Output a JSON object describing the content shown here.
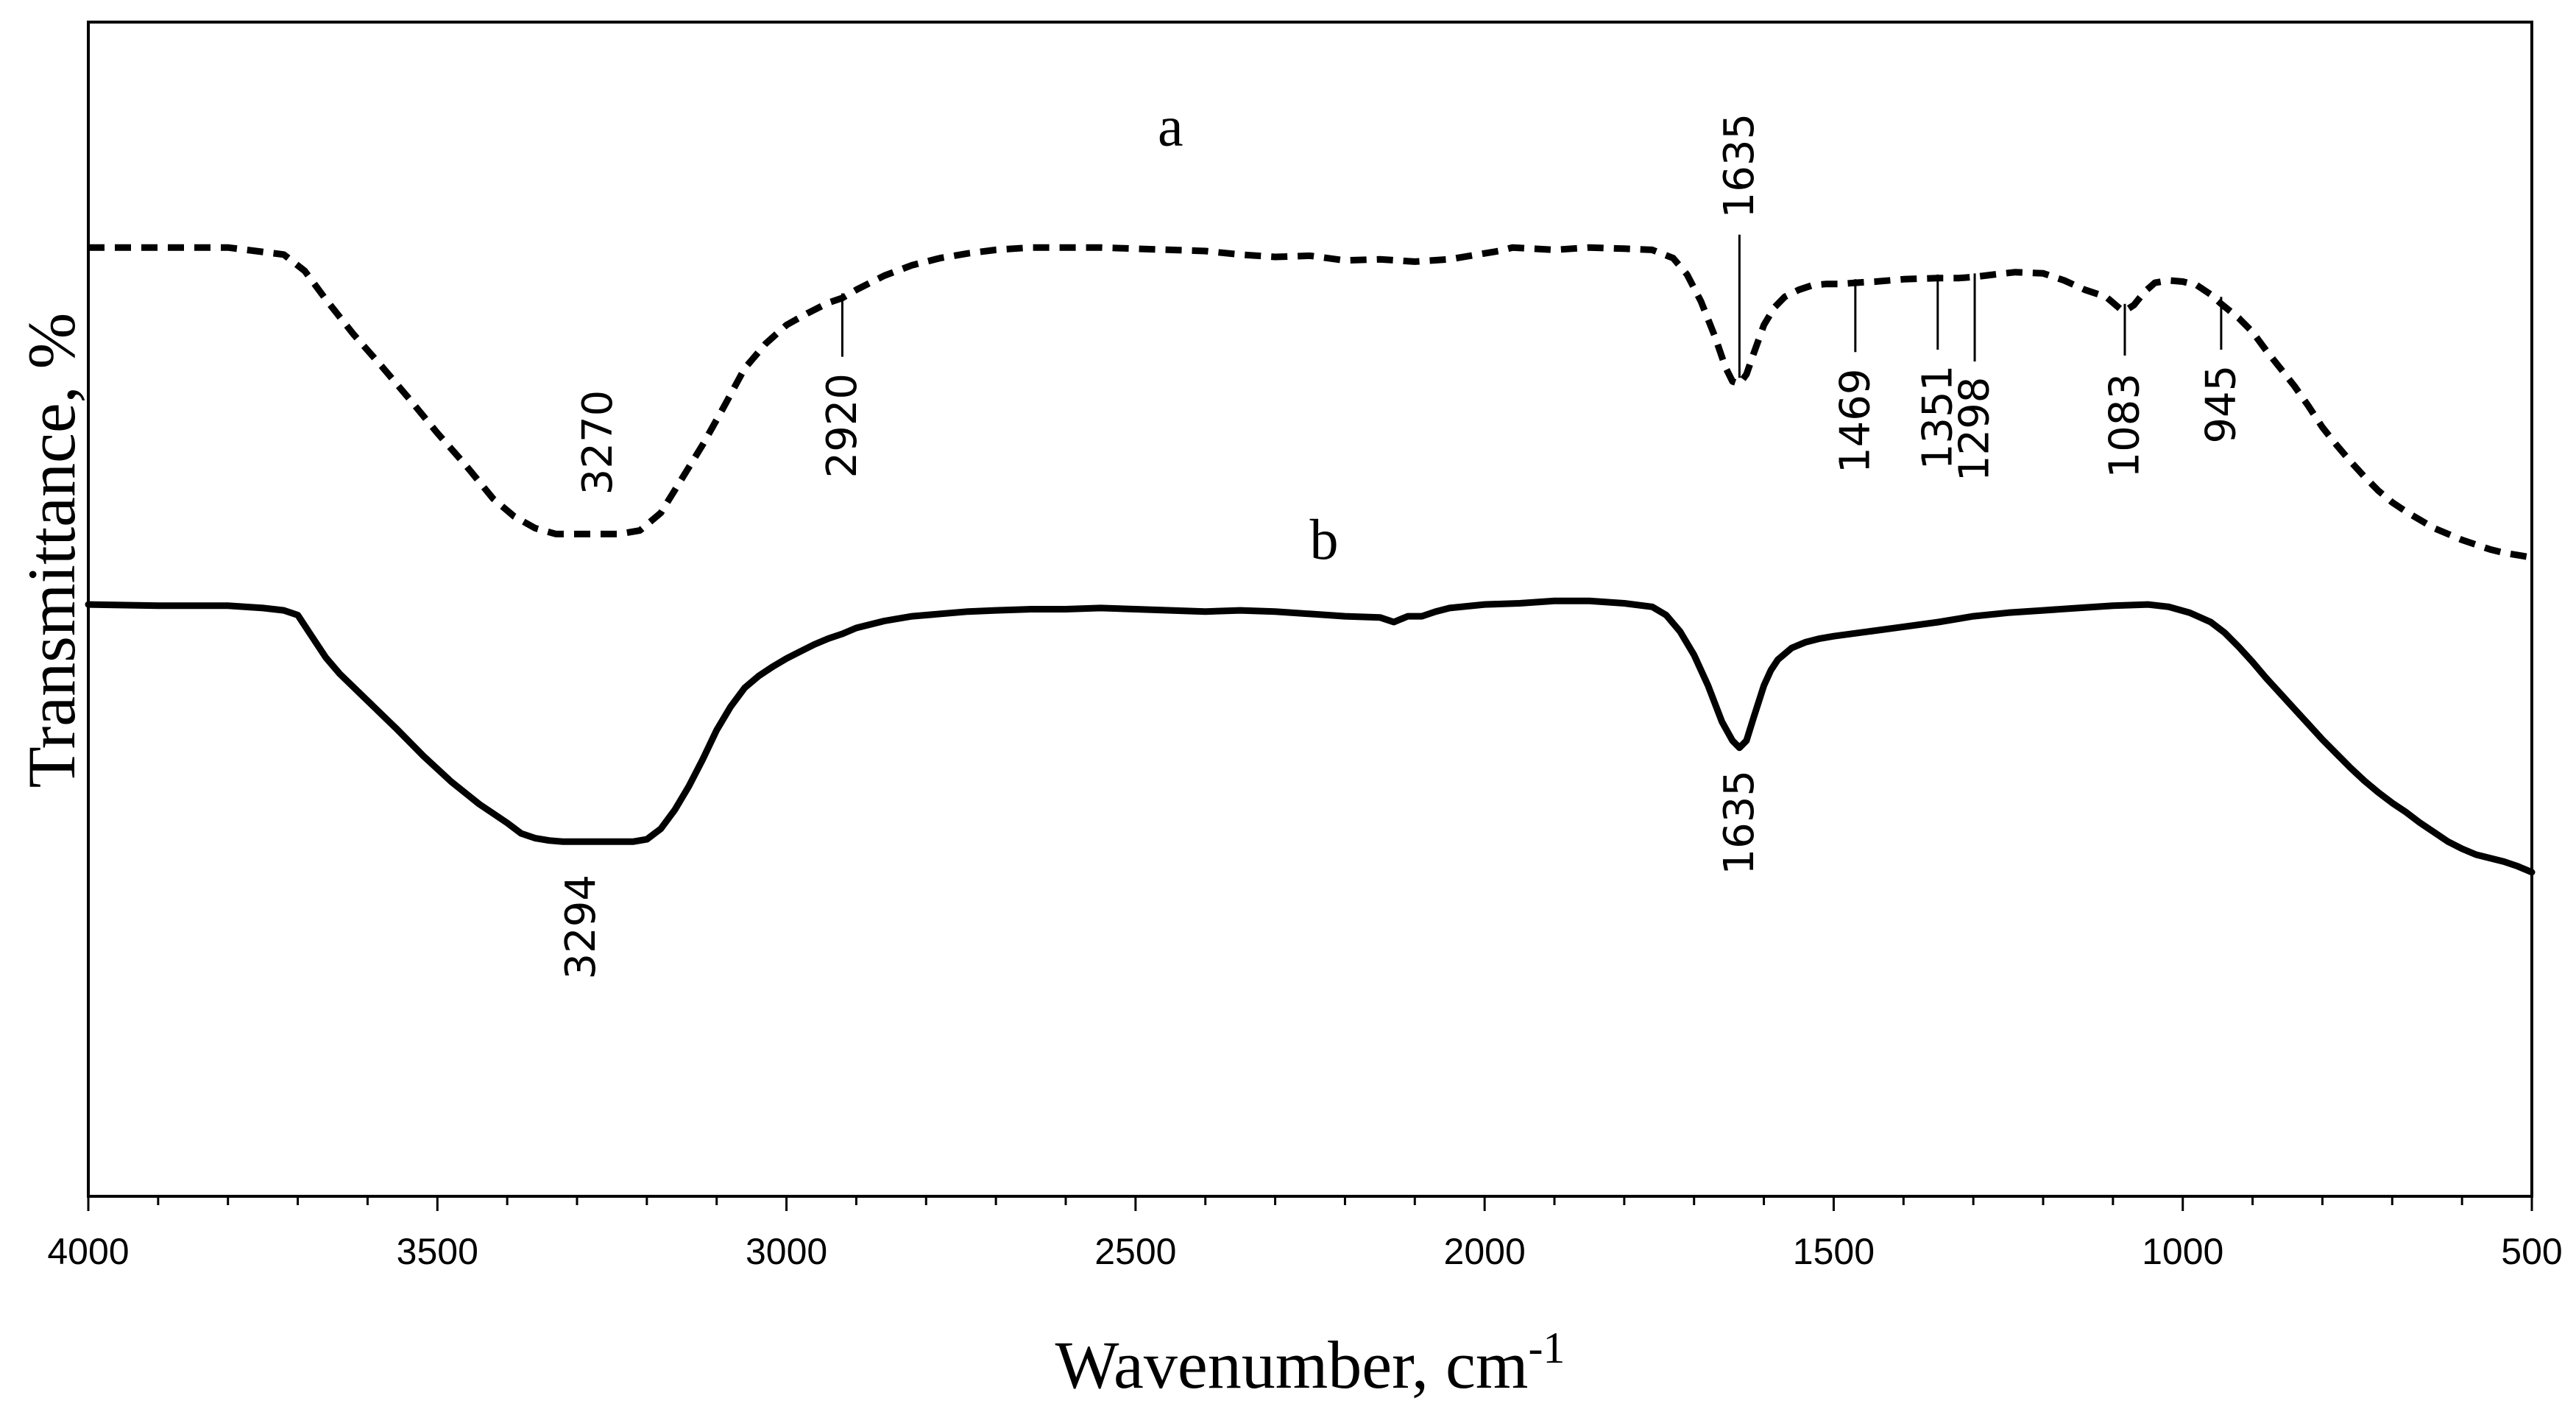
{
  "chart_data": {
    "type": "line",
    "title": "",
    "xlabel": "Wavenumber, cm",
    "xlabel_sup": "-1",
    "ylabel": "Transmittance, %",
    "xlim": [
      4000,
      500
    ],
    "ylim": [
      0,
      100
    ],
    "x_ticks": [
      4000,
      3500,
      3000,
      2500,
      2000,
      1500,
      1000,
      500
    ],
    "grid": false,
    "series": [
      {
        "name": "a",
        "style": "dashed",
        "x": [
          4000,
          3900,
          3800,
          3720,
          3690,
          3660,
          3620,
          3580,
          3540,
          3500,
          3460,
          3420,
          3390,
          3360,
          3330,
          3300,
          3270,
          3240,
          3210,
          3180,
          3150,
          3120,
          3090,
          3060,
          3030,
          3000,
          2970,
          2940,
          2920,
          2900,
          2860,
          2820,
          2780,
          2740,
          2700,
          2650,
          2600,
          2550,
          2500,
          2450,
          2400,
          2350,
          2300,
          2250,
          2200,
          2150,
          2100,
          2050,
          2000,
          1980,
          1960,
          1900,
          1850,
          1800,
          1760,
          1730,
          1710,
          1690,
          1670,
          1655,
          1645,
          1635,
          1625,
          1615,
          1600,
          1585,
          1570,
          1550,
          1530,
          1510,
          1490,
          1469,
          1440,
          1400,
          1351,
          1320,
          1298,
          1270,
          1240,
          1200,
          1170,
          1140,
          1110,
          1090,
          1083,
          1070,
          1055,
          1040,
          1020,
          1000,
          980,
          960,
          945,
          920,
          900,
          880,
          860,
          840,
          820,
          800,
          780,
          760,
          740,
          720,
          700,
          680,
          660,
          640,
          620,
          600,
          580,
          560,
          540,
          520,
          500
        ],
        "y": [
          80.8,
          80.8,
          80.8,
          80.2,
          78.8,
          76.4,
          73.4,
          70.7,
          67.9,
          65.0,
          62.3,
          59.4,
          57.9,
          56.9,
          56.4,
          56.4,
          56.4,
          56.4,
          56.7,
          58.2,
          61.1,
          64.0,
          67.2,
          70.5,
          72.6,
          74.2,
          75.2,
          76.1,
          76.5,
          77.2,
          78.4,
          79.3,
          79.9,
          80.3,
          80.6,
          80.8,
          80.8,
          80.8,
          80.7,
          80.6,
          80.5,
          80.2,
          80.0,
          80.1,
          79.7,
          79.8,
          79.6,
          79.8,
          80.3,
          80.5,
          80.8,
          80.6,
          80.8,
          80.7,
          80.6,
          79.9,
          78.5,
          76.2,
          73.2,
          70.6,
          69.4,
          69.2,
          70.0,
          71.7,
          74.2,
          75.7,
          76.6,
          77.2,
          77.6,
          77.7,
          77.7,
          77.8,
          77.9,
          78.1,
          78.2,
          78.2,
          78.3,
          78.5,
          78.7,
          78.6,
          78.0,
          77.2,
          76.6,
          75.6,
          75.4,
          75.9,
          77.0,
          77.8,
          78.0,
          77.9,
          77.6,
          76.8,
          76.0,
          74.8,
          73.6,
          72.0,
          70.5,
          69.0,
          67.3,
          65.5,
          64.0,
          62.6,
          61.3,
          60.1,
          59.1,
          58.3,
          57.6,
          56.9,
          56.4,
          55.9,
          55.5,
          55.1,
          54.8,
          54.6,
          54.4
        ]
      },
      {
        "name": "b",
        "style": "solid",
        "x": [
          4000,
          3900,
          3800,
          3750,
          3720,
          3700,
          3680,
          3660,
          3640,
          3600,
          3560,
          3520,
          3480,
          3440,
          3400,
          3380,
          3360,
          3340,
          3320,
          3300,
          3294,
          3280,
          3260,
          3240,
          3220,
          3200,
          3180,
          3160,
          3140,
          3120,
          3100,
          3080,
          3060,
          3040,
          3020,
          3000,
          2980,
          2960,
          2940,
          2920,
          2900,
          2880,
          2860,
          2820,
          2780,
          2740,
          2700,
          2650,
          2600,
          2550,
          2500,
          2450,
          2400,
          2350,
          2300,
          2250,
          2200,
          2150,
          2130,
          2110,
          2090,
          2070,
          2050,
          2000,
          1950,
          1900,
          1850,
          1800,
          1760,
          1740,
          1720,
          1700,
          1680,
          1660,
          1645,
          1635,
          1625,
          1615,
          1600,
          1590,
          1580,
          1560,
          1540,
          1520,
          1500,
          1450,
          1400,
          1350,
          1300,
          1250,
          1200,
          1150,
          1100,
          1050,
          1020,
          990,
          960,
          940,
          920,
          900,
          880,
          860,
          840,
          820,
          800,
          780,
          760,
          740,
          720,
          700,
          680,
          660,
          640,
          620,
          600,
          580,
          560,
          540,
          520,
          500
        ],
        "y": [
          50.4,
          50.3,
          50.3,
          50.1,
          49.9,
          49.5,
          47.7,
          45.9,
          44.5,
          42.2,
          39.9,
          37.5,
          35.3,
          33.4,
          31.8,
          30.9,
          30.5,
          30.3,
          30.2,
          30.2,
          30.2,
          30.2,
          30.2,
          30.2,
          30.2,
          30.4,
          31.3,
          32.9,
          34.9,
          37.2,
          39.7,
          41.7,
          43.3,
          44.3,
          45.1,
          45.8,
          46.4,
          47.0,
          47.5,
          47.9,
          48.4,
          48.7,
          49.0,
          49.4,
          49.6,
          49.8,
          49.9,
          50.0,
          50.0,
          50.1,
          50.0,
          49.9,
          49.8,
          49.9,
          49.8,
          49.6,
          49.4,
          49.3,
          48.9,
          49.4,
          49.4,
          49.8,
          50.1,
          50.4,
          50.5,
          50.7,
          50.7,
          50.5,
          50.2,
          49.5,
          48.1,
          46.1,
          43.5,
          40.4,
          38.8,
          38.2,
          38.8,
          40.7,
          43.5,
          44.8,
          45.7,
          46.7,
          47.2,
          47.5,
          47.7,
          48.1,
          48.5,
          48.9,
          49.4,
          49.7,
          49.9,
          50.1,
          50.3,
          50.4,
          50.2,
          49.7,
          48.9,
          48.0,
          46.8,
          45.5,
          44.1,
          42.8,
          41.5,
          40.2,
          38.9,
          37.7,
          36.5,
          35.4,
          34.4,
          33.5,
          32.7,
          31.8,
          31.0,
          30.2,
          29.6,
          29.1,
          28.8,
          28.5,
          28.1,
          27.6
        ]
      }
    ],
    "series_labels": [
      {
        "text": "a",
        "x": 2450,
        "y": 89.5
      },
      {
        "text": "b",
        "x": 2230,
        "y": 54.3
      }
    ],
    "annotations": [
      {
        "text": "3270",
        "wavenumber": 3270,
        "series": "a",
        "leader": false,
        "text_y": 64.2,
        "anchor": "middle"
      },
      {
        "text": "2920",
        "wavenumber": 2920,
        "series": "a",
        "leader": true,
        "line_top": 76.9,
        "line_bottom": 71.5,
        "text_y": 70.1,
        "anchor": "end"
      },
      {
        "text": "1635",
        "wavenumber": 1635,
        "series": "a",
        "leader": true,
        "line_top": 69.7,
        "line_bottom": 81.9,
        "text_y": 83.3,
        "anchor": "start"
      },
      {
        "text": "1469",
        "wavenumber": 1469,
        "series": "a",
        "leader": true,
        "line_top": 78.1,
        "line_bottom": 71.9,
        "text_y": 70.5,
        "anchor": "end"
      },
      {
        "text": "1351",
        "wavenumber": 1351,
        "series": "a",
        "leader": true,
        "line_top": 78.5,
        "line_bottom": 72.1,
        "text_y": 70.8,
        "anchor": "end"
      },
      {
        "text": "1298",
        "wavenumber": 1298,
        "series": "a",
        "leader": true,
        "line_top": 78.6,
        "line_bottom": 71.1,
        "text_y": 69.8,
        "anchor": "end"
      },
      {
        "text": "1083",
        "wavenumber": 1083,
        "series": "a",
        "leader": true,
        "line_top": 76.0,
        "line_bottom": 71.6,
        "text_y": 70.1,
        "anchor": "end"
      },
      {
        "text": "945",
        "wavenumber": 945,
        "series": "a",
        "leader": true,
        "line_top": 76.6,
        "line_bottom": 72.1,
        "text_y": 70.8,
        "anchor": "end"
      },
      {
        "text": "1635",
        "wavenumber": 1635,
        "series": "b",
        "leader": false,
        "text_y": 36.3,
        "anchor": "end"
      },
      {
        "text": "3294",
        "wavenumber": 3294,
        "series": "b",
        "leader": false,
        "text_y": 27.4,
        "anchor": "end"
      }
    ]
  }
}
